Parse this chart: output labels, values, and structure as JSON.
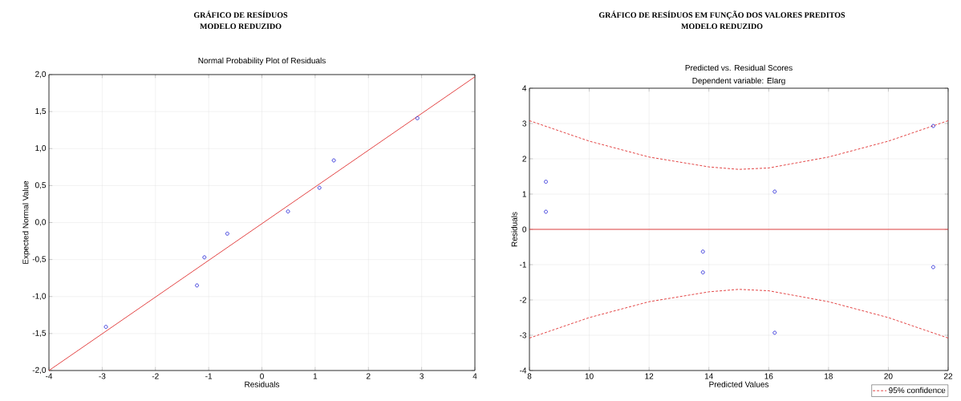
{
  "chart_data": [
    {
      "type": "scatter",
      "title": "Normal Probability Plot of Residuals",
      "xlabel": "Residuals",
      "ylabel": "Expected Normal Value",
      "annotations": [
        "GRÁFICO DE RESÍDUOS",
        "MODELO REDUZIDO"
      ],
      "series": [
        {
          "marker": "circle",
          "color": "#2a2ad8",
          "x": [
            -2.93,
            -1.22,
            -1.08,
            -0.65,
            0.49,
            1.08,
            1.35,
            2.92
          ],
          "values": [
            -1.41,
            -0.85,
            -0.47,
            -0.15,
            0.15,
            0.47,
            0.84,
            1.41
          ]
        },
        {
          "type": "line",
          "color": "#e03030",
          "x": [
            -4,
            4
          ],
          "values": [
            -2.0,
            1.97
          ]
        }
      ],
      "grid": true,
      "xlim": [
        -4,
        4
      ],
      "xticks": [
        -4,
        -3,
        -2,
        -1,
        0,
        1,
        2,
        3,
        4
      ],
      "ylim": [
        -2,
        2
      ],
      "yticks": [
        {
          "value": -2,
          "label": "-2,0"
        },
        {
          "value": -1.5,
          "label": "-1,5"
        },
        {
          "value": -1,
          "label": "-1,0"
        },
        {
          "value": -0.5,
          "label": "-0,5"
        },
        {
          "value": 0,
          "label": "0,0"
        },
        {
          "value": 0.5,
          "label": "0,5"
        },
        {
          "value": 1,
          "label": "1,0"
        },
        {
          "value": 1.5,
          "label": "1,5"
        },
        {
          "value": 2,
          "label": "2,0"
        }
      ]
    },
    {
      "type": "scatter",
      "title": "Predicted vs. Residual Scores",
      "subtitle": "Dependent variable: Elarg",
      "xlabel": "Predicted Values",
      "ylabel": "Residuals",
      "annotations": [
        "GRÁFICO DE RESÍDUOS EM FUNÇÃO DOS VALORES PREDITOS",
        "MODELO REDUZIDO"
      ],
      "series": [
        {
          "marker": "circle",
          "color": "#2a2ad8",
          "x": [
            8.55,
            8.55,
            13.8,
            13.8,
            16.2,
            16.2,
            21.5,
            21.5
          ],
          "values": [
            1.35,
            0.5,
            -0.63,
            -1.22,
            1.07,
            -2.93,
            2.93,
            -1.07
          ]
        },
        {
          "type": "line",
          "name": "95% confidence",
          "color": "#e03030",
          "line_style": "dashed",
          "x": [
            8,
            10,
            12,
            14,
            15,
            16,
            18,
            20,
            22
          ],
          "values": [
            3.08,
            2.5,
            2.05,
            1.77,
            1.7,
            1.74,
            2.05,
            2.5,
            3.08
          ]
        },
        {
          "type": "line",
          "color": "#e03030",
          "line_style": "dashed",
          "x": [
            8,
            10,
            12,
            14,
            15,
            16,
            18,
            20,
            22
          ],
          "values": [
            -3.08,
            -2.5,
            -2.05,
            -1.77,
            -1.7,
            -1.74,
            -2.05,
            -2.5,
            -3.08
          ]
        }
      ],
      "ref_lines": [
        {
          "axis": "y",
          "value": 0,
          "color": "#e03030"
        }
      ],
      "grid": true,
      "legend": "bottom right",
      "xlim": [
        8,
        22
      ],
      "xticks": [
        8,
        10,
        12,
        14,
        16,
        18,
        20,
        22
      ],
      "ylim": [
        -4,
        4
      ],
      "yticks": [
        -4,
        -3,
        -2,
        -1,
        0,
        1,
        2,
        3,
        4
      ]
    }
  ]
}
